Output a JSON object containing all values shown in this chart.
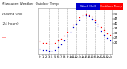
{
  "title": "Milwaukee Weather  Outdoor Temp",
  "title2": "vs Wind Chill",
  "title3": "(24 Hours)",
  "title_fontsize": 3.0,
  "background_color": "#ffffff",
  "plot_bg_color": "#ffffff",
  "grid_color": "#aaaaaa",
  "hours": [
    0,
    1,
    2,
    3,
    4,
    5,
    6,
    7,
    8,
    9,
    10,
    11,
    12,
    13,
    14,
    15,
    16,
    17,
    18,
    19,
    20,
    21,
    22,
    23
  ],
  "temp": [
    21,
    20,
    20,
    19,
    19,
    20,
    22,
    24,
    27,
    31,
    35,
    39,
    43,
    46,
    49,
    50,
    49,
    47,
    44,
    40,
    36,
    33,
    30,
    28
  ],
  "windchill": [
    13,
    12,
    12,
    11,
    11,
    12,
    15,
    18,
    22,
    27,
    31,
    36,
    40,
    44,
    47,
    49,
    48,
    45,
    41,
    37,
    32,
    28,
    25,
    22
  ],
  "temp_color": "#ff0000",
  "windchill_color": "#0000cc",
  "ylim": [
    8,
    56
  ],
  "ytick_values": [
    20,
    25,
    30,
    35,
    40,
    45,
    50
  ],
  "ytick_labels": [
    "20",
    "25",
    "30",
    "35",
    "40",
    "45",
    "50"
  ],
  "ylabel_fontsize": 3.0,
  "xlabel_fontsize": 2.8,
  "marker_size": 0.9,
  "dashed_grid_hours": [
    3,
    6,
    9,
    12,
    15,
    18,
    21
  ],
  "border_color": "#999999",
  "legend_blue_label": "Wind Chill",
  "legend_red_label": "Outdoor Temp",
  "legend_fontsize": 2.8
}
